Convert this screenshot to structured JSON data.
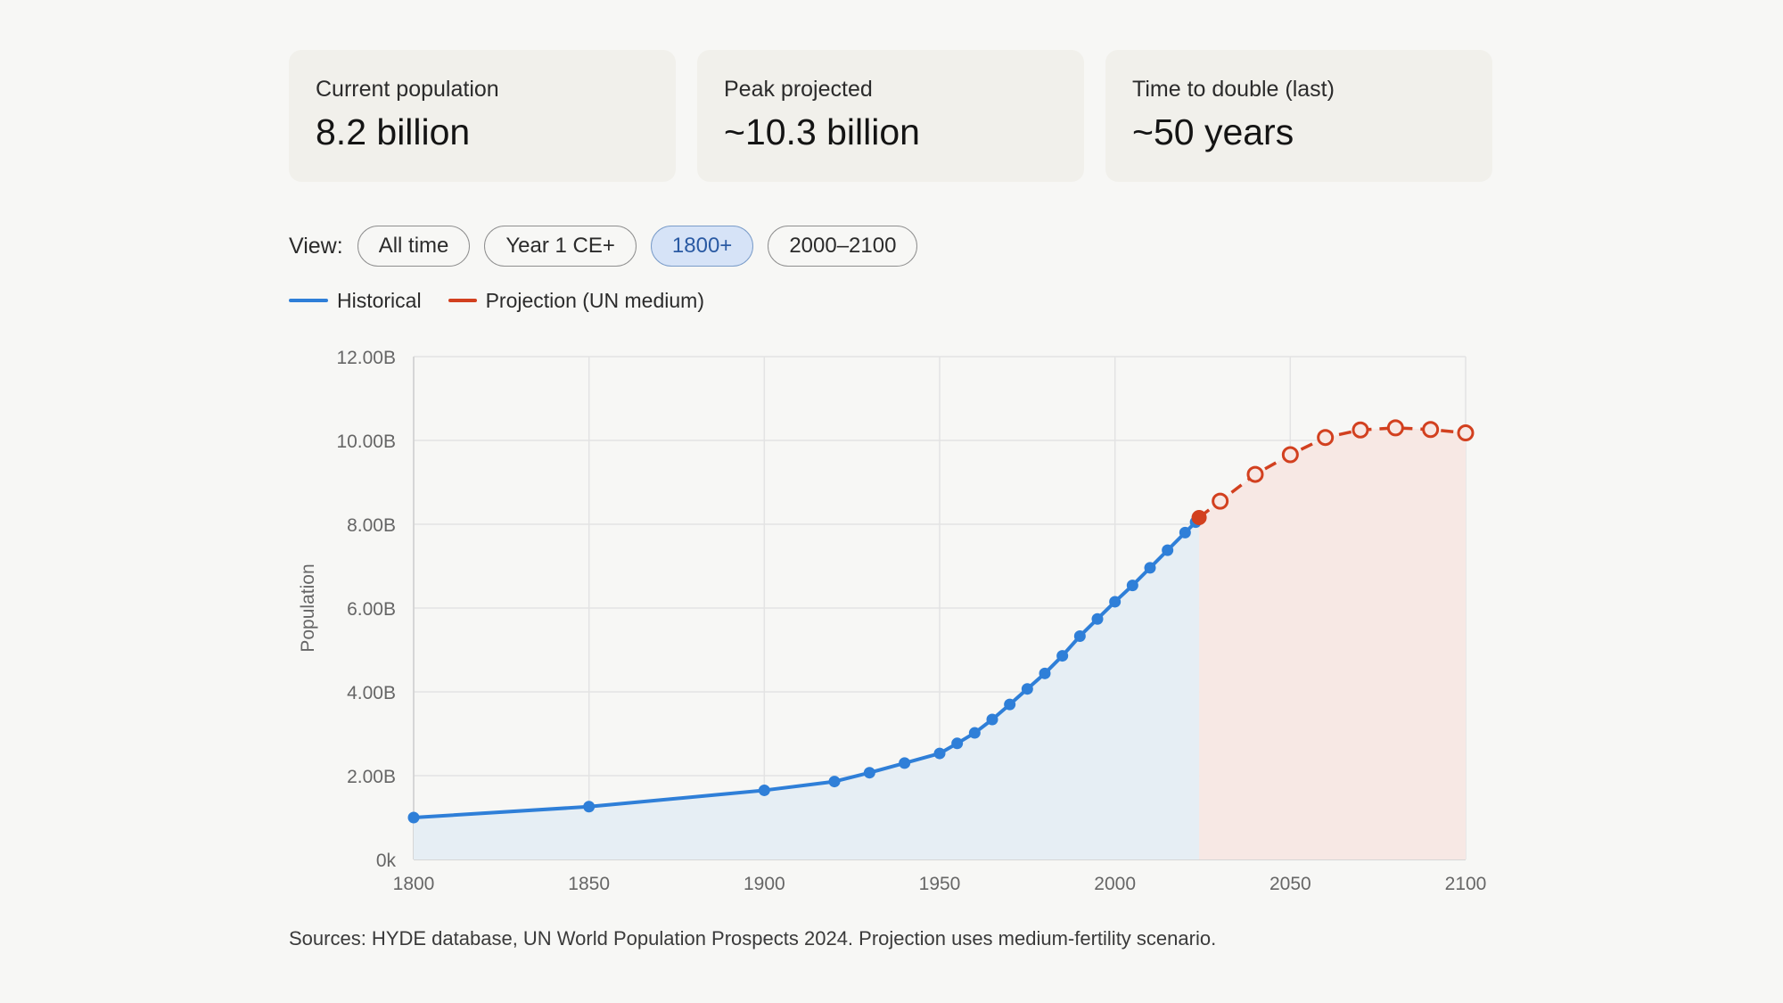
{
  "cards": [
    {
      "label": "Current population",
      "value": "8.2 billion"
    },
    {
      "label": "Peak projected",
      "value": "~10.3 billion"
    },
    {
      "label": "Time to double (last)",
      "value": "~50 years"
    }
  ],
  "view": {
    "label": "View:",
    "options": [
      "All time",
      "Year 1 CE+",
      "1800+",
      "2000–2100"
    ],
    "selected": "1800+"
  },
  "legend": {
    "historical": "Historical",
    "projection": "Projection (UN medium)"
  },
  "colors": {
    "historical": "#2f7fd8",
    "historical_fill": "#e6eef4",
    "projection": "#d2401f",
    "projection_fill": "#f7e8e4"
  },
  "chart_data": {
    "type": "line",
    "xlabel": "",
    "ylabel": "Population",
    "xlim": [
      1800,
      2100
    ],
    "ylim": [
      0,
      12000000000
    ],
    "x_ticks": [
      "1800",
      "1850",
      "1900",
      "1950",
      "2000",
      "2050",
      "2100"
    ],
    "y_ticks": [
      "0k",
      "2.00B",
      "4.00B",
      "6.00B",
      "8.00B",
      "10.00B",
      "12.00B"
    ],
    "grid": true,
    "legend_position": "top-left",
    "series": [
      {
        "name": "Historical",
        "style": "solid",
        "points": [
          [
            1800,
            1.0
          ],
          [
            1850,
            1.26
          ],
          [
            1900,
            1.65
          ],
          [
            1920,
            1.86
          ],
          [
            1930,
            2.07
          ],
          [
            1940,
            2.3
          ],
          [
            1950,
            2.53
          ],
          [
            1955,
            2.77
          ],
          [
            1960,
            3.02
          ],
          [
            1965,
            3.34
          ],
          [
            1970,
            3.7
          ],
          [
            1975,
            4.07
          ],
          [
            1980,
            4.44
          ],
          [
            1985,
            4.86
          ],
          [
            1990,
            5.33
          ],
          [
            1995,
            5.74
          ],
          [
            2000,
            6.15
          ],
          [
            2005,
            6.54
          ],
          [
            2010,
            6.96
          ],
          [
            2015,
            7.38
          ],
          [
            2020,
            7.8
          ],
          [
            2023,
            8.05
          ],
          [
            2024,
            8.16
          ]
        ],
        "unit": "billion"
      },
      {
        "name": "Projection (UN medium)",
        "style": "dashed",
        "points": [
          [
            2024,
            8.16
          ],
          [
            2030,
            8.55
          ],
          [
            2040,
            9.19
          ],
          [
            2050,
            9.66
          ],
          [
            2060,
            10.07
          ],
          [
            2070,
            10.25
          ],
          [
            2080,
            10.3
          ],
          [
            2090,
            10.26
          ],
          [
            2100,
            10.18
          ]
        ],
        "unit": "billion"
      }
    ]
  },
  "sources": "Sources: HYDE database, UN World Population Prospects 2024. Projection uses medium-fertility scenario."
}
